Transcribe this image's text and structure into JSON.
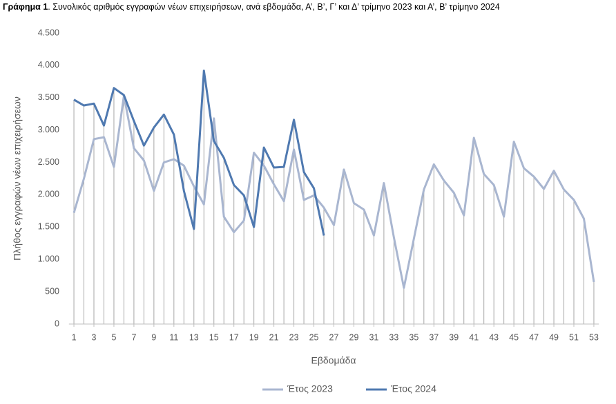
{
  "chart_data": {
    "type": "line",
    "title_label": "Γράφημα 1",
    "title": ". Συνολικός αριθμός εγγραφών νέων επιχειρήσεων, ανά εβδομάδα, Α’, Β’, Γ’ και Δ’ τρίμηνο 2023 και Α’, Β’ τρίμηνο 2024",
    "y_label": "Πλήθος εγγραφών νέων επιχειρήσεων",
    "x_label": "Εβδομάδα",
    "x": [
      1,
      2,
      3,
      4,
      5,
      6,
      7,
      8,
      9,
      10,
      11,
      12,
      13,
      14,
      15,
      16,
      17,
      18,
      19,
      20,
      21,
      22,
      23,
      24,
      25,
      26,
      27,
      28,
      29,
      30,
      31,
      32,
      33,
      34,
      35,
      36,
      37,
      38,
      39,
      40,
      41,
      42,
      43,
      44,
      45,
      46,
      47,
      48,
      49,
      50,
      51,
      52,
      53
    ],
    "series": [
      {
        "name": "Έτος 2023",
        "color": "#a9b6d0",
        "values": [
          1720,
          2250,
          2860,
          2890,
          2430,
          3530,
          2720,
          2530,
          2060,
          2500,
          2550,
          2450,
          2130,
          1850,
          3180,
          1660,
          1420,
          1600,
          2650,
          2450,
          2160,
          1900,
          2700,
          1920,
          1990,
          1800,
          1530,
          2390,
          1870,
          1770,
          1370,
          2180,
          1340,
          560,
          1320,
          2080,
          2470,
          2220,
          2030,
          1680,
          2880,
          2320,
          2150,
          1660,
          2820,
          2410,
          2280,
          2090,
          2370,
          2080,
          1920,
          1630,
          650
        ]
      },
      {
        "name": "Έτος 2024",
        "color": "#4f79b0",
        "values": [
          3470,
          3380,
          3410,
          3070,
          3650,
          3540,
          3140,
          2760,
          3040,
          3240,
          2930,
          2060,
          1470,
          3920,
          2830,
          2570,
          2150,
          1990,
          1500,
          2730,
          2420,
          2430,
          3160,
          2350,
          2100,
          1370,
          null,
          null,
          null,
          null,
          null,
          null,
          null,
          null,
          null,
          null,
          null,
          null,
          null,
          null,
          null,
          null,
          null,
          null,
          null,
          null,
          null,
          null,
          null,
          null,
          null,
          null,
          null
        ]
      }
    ],
    "xlim": [
      0.5,
      53.5
    ],
    "xticks": [
      1,
      3,
      5,
      7,
      9,
      11,
      13,
      15,
      17,
      19,
      21,
      23,
      25,
      27,
      29,
      31,
      33,
      35,
      37,
      39,
      41,
      43,
      45,
      47,
      49,
      51,
      53
    ],
    "ylim": [
      0,
      4500
    ],
    "yticks": [
      0,
      500,
      {
        "value": 1000,
        "label": "1.000"
      },
      {
        "value": 1500,
        "label": "1.500"
      },
      {
        "value": 2000,
        "label": "2.000"
      },
      {
        "value": 2500,
        "label": "2.500"
      },
      {
        "value": 3000,
        "label": "3.000"
      },
      {
        "value": 3500,
        "label": "3.500"
      },
      {
        "value": 4000,
        "label": "4.000"
      },
      {
        "value": 4500,
        "label": "4.500"
      }
    ],
    "legend": "bottom"
  }
}
